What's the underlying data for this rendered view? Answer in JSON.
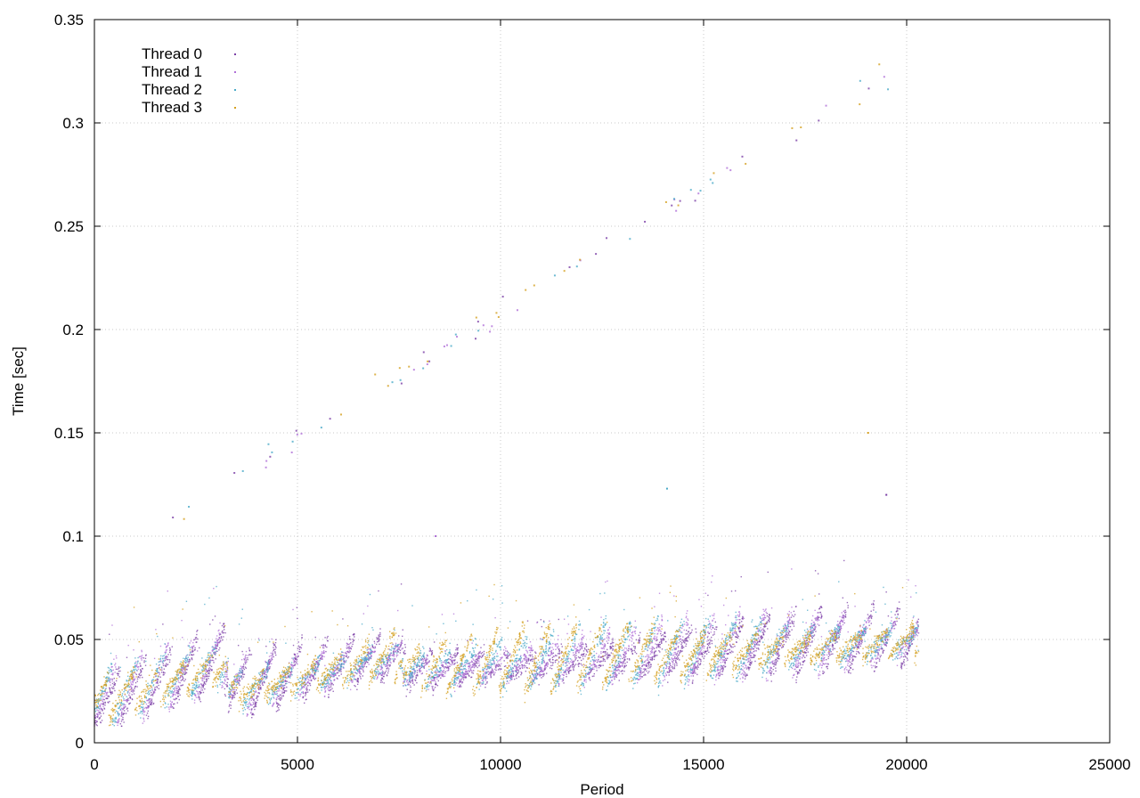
{
  "chart_data": {
    "type": "scatter",
    "title": "",
    "xlabel": "Period",
    "ylabel": "Time [sec]",
    "xlim": [
      0,
      25000
    ],
    "ylim": [
      0,
      0.35
    ],
    "x_ticks": [
      "0",
      "5000",
      "10000",
      "15000",
      "20000",
      "25000"
    ],
    "y_ticks": [
      "0",
      "0.05",
      "0.1",
      "0.15",
      "0.2",
      "0.25",
      "0.3",
      "0.35"
    ],
    "grid": true,
    "legend_position": "top-left",
    "series": [
      {
        "name": "Thread 0",
        "color": "#7b3fa6",
        "marker": "dot"
      },
      {
        "name": "Thread 1",
        "color": "#b070d8",
        "marker": "plus"
      },
      {
        "name": "Thread 2",
        "color": "#4aaac8",
        "marker": "cross"
      },
      {
        "name": "Thread 3",
        "color": "#d4a020",
        "marker": "star"
      }
    ],
    "baseline_segments": [
      {
        "x": [
          0,
          3300
        ],
        "y": [
          0.016,
          0.036
        ]
      },
      {
        "x": [
          3300,
          7600
        ],
        "y": [
          0.022,
          0.04
        ]
      },
      {
        "x": [
          7600,
          20300
        ],
        "y": [
          0.032,
          0.047
        ]
      }
    ],
    "sawtooth_period": 640,
    "sawtooth_amplitude_range": [
      0.012,
      0.032
    ],
    "outlier_trend": {
      "x": [
        1500,
        20000
      ],
      "y": [
        0.105,
        0.33
      ]
    },
    "secondary_peaks": [
      {
        "x": 8400,
        "y": 0.1
      },
      {
        "x": 14100,
        "y": 0.123
      },
      {
        "x": 19050,
        "y": 0.15
      },
      {
        "x": 19500,
        "y": 0.12
      }
    ]
  }
}
